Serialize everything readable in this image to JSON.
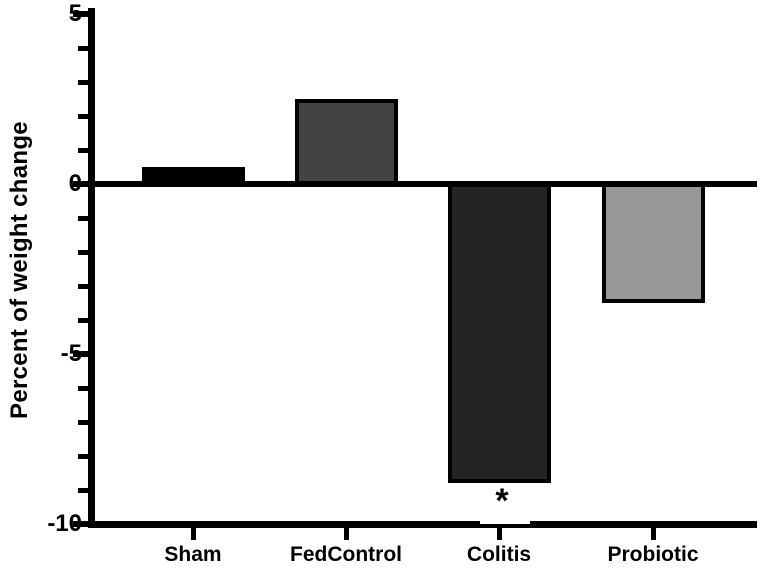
{
  "chart_data": {
    "type": "bar",
    "title": "",
    "categories": [
      "Sham",
      "FedControl",
      "Colitis",
      "Probiotic"
    ],
    "values": [
      0.5,
      2.5,
      -8.8,
      -3.5
    ],
    "bar_colors": [
      "#000000",
      "#434343",
      "#242424",
      "#989898"
    ],
    "bar_border_color": "#000000",
    "xlabel": "",
    "ylabel": "Percent of weight change",
    "ylim": [
      -10,
      5
    ],
    "yticks_major": [
      5,
      0,
      -5,
      -10
    ],
    "ytick_minor_step": 1,
    "grid": false,
    "legend": null,
    "background_color": "#ffffff",
    "axis_color": "#000000",
    "annotations": [
      {
        "text": "*",
        "category_index": 2,
        "placement": "below-bar"
      }
    ]
  }
}
